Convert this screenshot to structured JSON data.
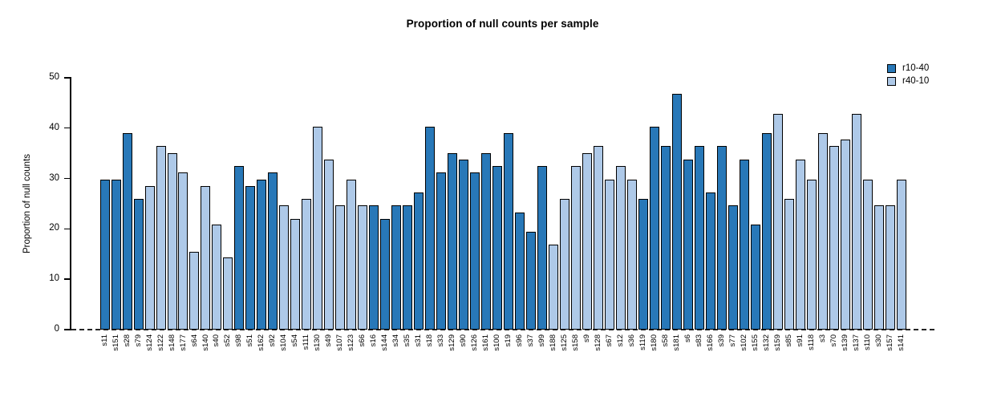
{
  "title": "Proportion of null counts per sample",
  "y_axis": {
    "label": "Proportion of null counts",
    "ticks": [
      0,
      10,
      20,
      30,
      40,
      50
    ],
    "max": 50
  },
  "legend": {
    "position": "top-right",
    "items": [
      {
        "label": "r10-40",
        "color": "#2878B8"
      },
      {
        "label": "r40-10",
        "color": "#AEC9E8"
      }
    ]
  },
  "colors": {
    "bar_outline": "#000000",
    "axis": "#000000",
    "background": "#ffffff",
    "zero_line": "#262626"
  },
  "chart_data": {
    "type": "bar",
    "title": "Proportion of null counts per sample",
    "xlabel": "",
    "ylabel": "Proportion of null counts",
    "ylim": [
      0,
      50
    ],
    "grid": false,
    "legend_position": "top-right",
    "zero_line_style": "dashed",
    "bars": [
      {
        "sample": "s11",
        "group": "r10-40",
        "value": 29.8
      },
      {
        "sample": "s151",
        "group": "r10-40",
        "value": 29.8
      },
      {
        "sample": "s28",
        "group": "r10-40",
        "value": 39.0
      },
      {
        "sample": "s79",
        "group": "r10-40",
        "value": 25.9
      },
      {
        "sample": "s124",
        "group": "r40-10",
        "value": 28.5
      },
      {
        "sample": "s122",
        "group": "r40-10",
        "value": 36.4
      },
      {
        "sample": "s148",
        "group": "r40-10",
        "value": 35.0
      },
      {
        "sample": "s177",
        "group": "r40-10",
        "value": 31.2
      },
      {
        "sample": "s64",
        "group": "r40-10",
        "value": 15.5
      },
      {
        "sample": "s140",
        "group": "r40-10",
        "value": 28.5
      },
      {
        "sample": "s40",
        "group": "r40-10",
        "value": 20.8
      },
      {
        "sample": "s52",
        "group": "r40-10",
        "value": 14.3
      },
      {
        "sample": "s98",
        "group": "r10-40",
        "value": 32.4
      },
      {
        "sample": "s51",
        "group": "r10-40",
        "value": 28.5
      },
      {
        "sample": "s162",
        "group": "r10-40",
        "value": 29.8
      },
      {
        "sample": "s92",
        "group": "r10-40",
        "value": 31.2
      },
      {
        "sample": "s104",
        "group": "r40-10",
        "value": 24.6
      },
      {
        "sample": "s54",
        "group": "r40-10",
        "value": 22.0
      },
      {
        "sample": "s111",
        "group": "r40-10",
        "value": 25.9
      },
      {
        "sample": "s130",
        "group": "r40-10",
        "value": 40.2
      },
      {
        "sample": "s49",
        "group": "r40-10",
        "value": 33.7
      },
      {
        "sample": "s107",
        "group": "r40-10",
        "value": 24.6
      },
      {
        "sample": "s123",
        "group": "r40-10",
        "value": 29.8
      },
      {
        "sample": "s66",
        "group": "r40-10",
        "value": 24.6
      },
      {
        "sample": "s16",
        "group": "r10-40",
        "value": 24.6
      },
      {
        "sample": "s144",
        "group": "r10-40",
        "value": 22.0
      },
      {
        "sample": "s34",
        "group": "r10-40",
        "value": 24.6
      },
      {
        "sample": "s35",
        "group": "r10-40",
        "value": 24.6
      },
      {
        "sample": "s31",
        "group": "r10-40",
        "value": 27.2
      },
      {
        "sample": "s18",
        "group": "r10-40",
        "value": 40.2
      },
      {
        "sample": "s33",
        "group": "r10-40",
        "value": 31.2
      },
      {
        "sample": "s129",
        "group": "r10-40",
        "value": 35.0
      },
      {
        "sample": "s90",
        "group": "r10-40",
        "value": 33.7
      },
      {
        "sample": "s126",
        "group": "r10-40",
        "value": 31.2
      },
      {
        "sample": "s161",
        "group": "r10-40",
        "value": 35.0
      },
      {
        "sample": "s100",
        "group": "r10-40",
        "value": 32.4
      },
      {
        "sample": "s19",
        "group": "r10-40",
        "value": 39.0
      },
      {
        "sample": "s96",
        "group": "r10-40",
        "value": 23.3
      },
      {
        "sample": "s37",
        "group": "r10-40",
        "value": 19.5
      },
      {
        "sample": "s99",
        "group": "r10-40",
        "value": 32.4
      },
      {
        "sample": "s188",
        "group": "r40-10",
        "value": 16.8
      },
      {
        "sample": "s125",
        "group": "r40-10",
        "value": 25.9
      },
      {
        "sample": "s158",
        "group": "r40-10",
        "value": 32.4
      },
      {
        "sample": "s9",
        "group": "r40-10",
        "value": 35.0
      },
      {
        "sample": "s128",
        "group": "r40-10",
        "value": 36.4
      },
      {
        "sample": "s67",
        "group": "r40-10",
        "value": 29.8
      },
      {
        "sample": "s12",
        "group": "r40-10",
        "value": 32.4
      },
      {
        "sample": "s36",
        "group": "r40-10",
        "value": 29.8
      },
      {
        "sample": "s119",
        "group": "r10-40",
        "value": 25.9
      },
      {
        "sample": "s180",
        "group": "r10-40",
        "value": 40.2
      },
      {
        "sample": "s58",
        "group": "r10-40",
        "value": 36.4
      },
      {
        "sample": "s181",
        "group": "r10-40",
        "value": 46.8
      },
      {
        "sample": "s6",
        "group": "r10-40",
        "value": 33.7
      },
      {
        "sample": "s83",
        "group": "r10-40",
        "value": 36.4
      },
      {
        "sample": "s166",
        "group": "r10-40",
        "value": 27.2
      },
      {
        "sample": "s39",
        "group": "r10-40",
        "value": 36.4
      },
      {
        "sample": "s77",
        "group": "r10-40",
        "value": 24.6
      },
      {
        "sample": "s102",
        "group": "r10-40",
        "value": 33.7
      },
      {
        "sample": "s155",
        "group": "r10-40",
        "value": 20.8
      },
      {
        "sample": "s132",
        "group": "r10-40",
        "value": 39.0
      },
      {
        "sample": "s159",
        "group": "r40-10",
        "value": 42.9
      },
      {
        "sample": "s85",
        "group": "r40-10",
        "value": 25.9
      },
      {
        "sample": "s91",
        "group": "r40-10",
        "value": 33.7
      },
      {
        "sample": "s118",
        "group": "r40-10",
        "value": 29.8
      },
      {
        "sample": "s3",
        "group": "r40-10",
        "value": 39.0
      },
      {
        "sample": "s70",
        "group": "r40-10",
        "value": 36.4
      },
      {
        "sample": "s139",
        "group": "r40-10",
        "value": 37.7
      },
      {
        "sample": "s137",
        "group": "r40-10",
        "value": 42.9
      },
      {
        "sample": "s110",
        "group": "r40-10",
        "value": 29.8
      },
      {
        "sample": "s30",
        "group": "r40-10",
        "value": 24.6
      },
      {
        "sample": "s157",
        "group": "r40-10",
        "value": 24.6
      },
      {
        "sample": "s141",
        "group": "r40-10",
        "value": 29.8
      }
    ]
  }
}
